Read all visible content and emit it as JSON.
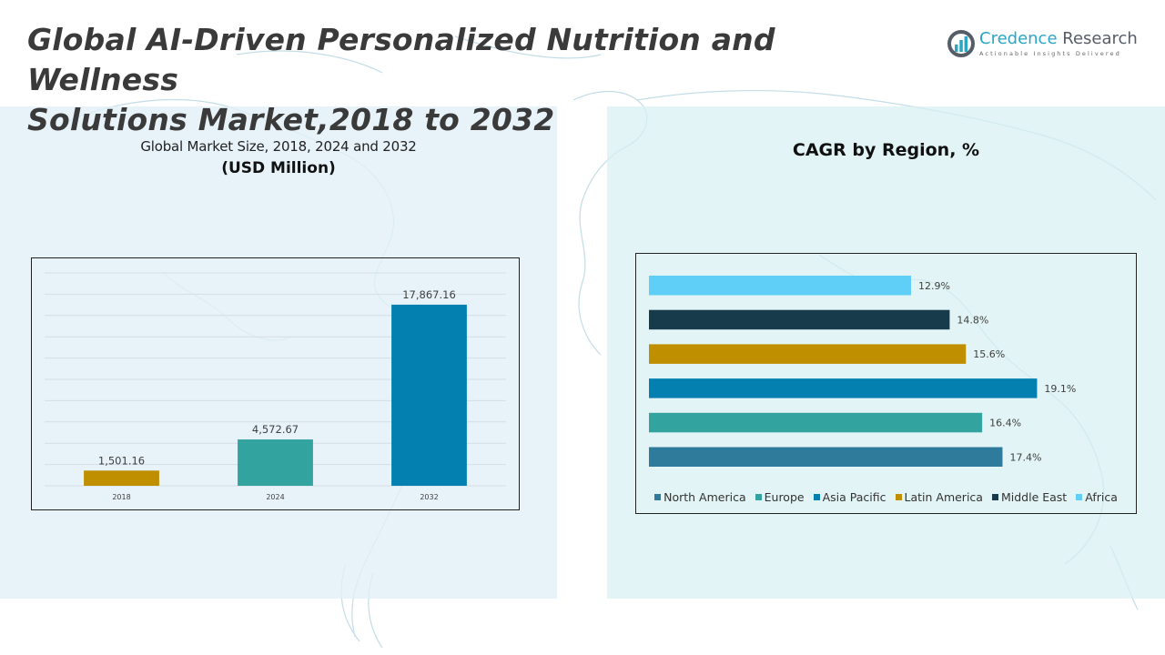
{
  "header": {
    "title_line1": "Global AI-Driven Personalized Nutrition and Wellness",
    "title_line2": "Solutions Market,2018 to 2032"
  },
  "logo": {
    "name_part1": "Credence",
    "name_part2": "Research",
    "tagline": "Actionable Insights Delivered",
    "icon": "bar-chart-circle-icon"
  },
  "left_panel": {
    "subtitle": "Global Market Size, 2018, 2024 and 2032",
    "unit": "(USD Million)"
  },
  "right_panel": {
    "title": "CAGR by Region, %"
  },
  "colors": {
    "gold": "#BF8F00",
    "teal": "#33A39F",
    "blue": "#0480B0",
    "steel_blue": "#2E7B9C",
    "dark_navy": "#173B4A",
    "sky": "#5FCFF7"
  },
  "chart_data": [
    {
      "type": "bar",
      "title": "Global Market Size, 2018, 2024 and 2032",
      "subtitle": "(USD Million)",
      "categories": [
        "2018",
        "2024",
        "2032"
      ],
      "values": [
        1501.16,
        4572.67,
        17867.16
      ],
      "value_labels": [
        "1,501.16",
        "4,572.67",
        "17,867.16"
      ],
      "bar_colors": [
        "#BF8F00",
        "#33A39F",
        "#0480B0"
      ],
      "xlabel": "",
      "ylabel": "",
      "ylim": [
        0,
        21000
      ],
      "grid": true,
      "legend": "none"
    },
    {
      "type": "bar",
      "orientation": "horizontal",
      "title": "CAGR by Region, %",
      "categories": [
        "Africa",
        "Middle East",
        "Latin America",
        "Asia Pacific",
        "Europe",
        "North America"
      ],
      "values": [
        12.9,
        14.8,
        15.6,
        19.1,
        16.4,
        17.4
      ],
      "value_labels": [
        "12.9%",
        "14.8%",
        "15.6%",
        "19.1%",
        "16.4%",
        "17.4%"
      ],
      "bar_colors": [
        "#5FCFF7",
        "#173B4A",
        "#BF8F00",
        "#0480B0",
        "#33A39F",
        "#2E7B9C"
      ],
      "xlim": [
        0,
        21.5
      ],
      "grid": false,
      "legend": "bottom",
      "legend_entries": [
        {
          "label": "North America",
          "color": "#2E7B9C"
        },
        {
          "label": "Europe",
          "color": "#33A39F"
        },
        {
          "label": "Asia Pacific",
          "color": "#0480B0"
        },
        {
          "label": "Latin America",
          "color": "#BF8F00"
        },
        {
          "label": "Middle East",
          "color": "#173B4A"
        },
        {
          "label": "Africa",
          "color": "#5FCFF7"
        }
      ]
    }
  ]
}
